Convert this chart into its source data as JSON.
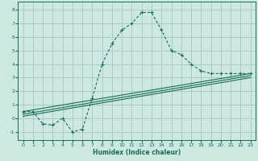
{
  "xlabel": "Humidex (Indice chaleur)",
  "background_color": "#cce8e0",
  "grid_color": "#aaccc4",
  "line_color": "#1a6b5a",
  "xlim": [
    -0.5,
    23.5
  ],
  "ylim": [
    -1.6,
    8.6
  ],
  "xticks": [
    0,
    1,
    2,
    3,
    4,
    5,
    6,
    7,
    8,
    9,
    10,
    11,
    12,
    13,
    14,
    15,
    16,
    17,
    18,
    19,
    20,
    21,
    22,
    23
  ],
  "yticks": [
    -1,
    0,
    1,
    2,
    3,
    4,
    5,
    6,
    7,
    8
  ],
  "series1_x": [
    0,
    1,
    2,
    3,
    4,
    5,
    6,
    7,
    8,
    9,
    10,
    11,
    12,
    13,
    14,
    15,
    16,
    17,
    18,
    19,
    20,
    21,
    22,
    23
  ],
  "series1_y": [
    0.5,
    0.5,
    -0.4,
    -0.5,
    0.0,
    -1.0,
    -0.8,
    1.5,
    4.0,
    5.5,
    6.5,
    7.0,
    7.8,
    7.8,
    6.5,
    5.0,
    4.7,
    4.0,
    3.5,
    3.3,
    3.3,
    3.3,
    3.3,
    3.3
  ],
  "series2_x": [
    0,
    23
  ],
  "series2_y": [
    0.5,
    3.3
  ],
  "series3_x": [
    0,
    23
  ],
  "series3_y": [
    0.3,
    3.15
  ],
  "series4_x": [
    0,
    23
  ],
  "series4_y": [
    0.15,
    3.0
  ]
}
